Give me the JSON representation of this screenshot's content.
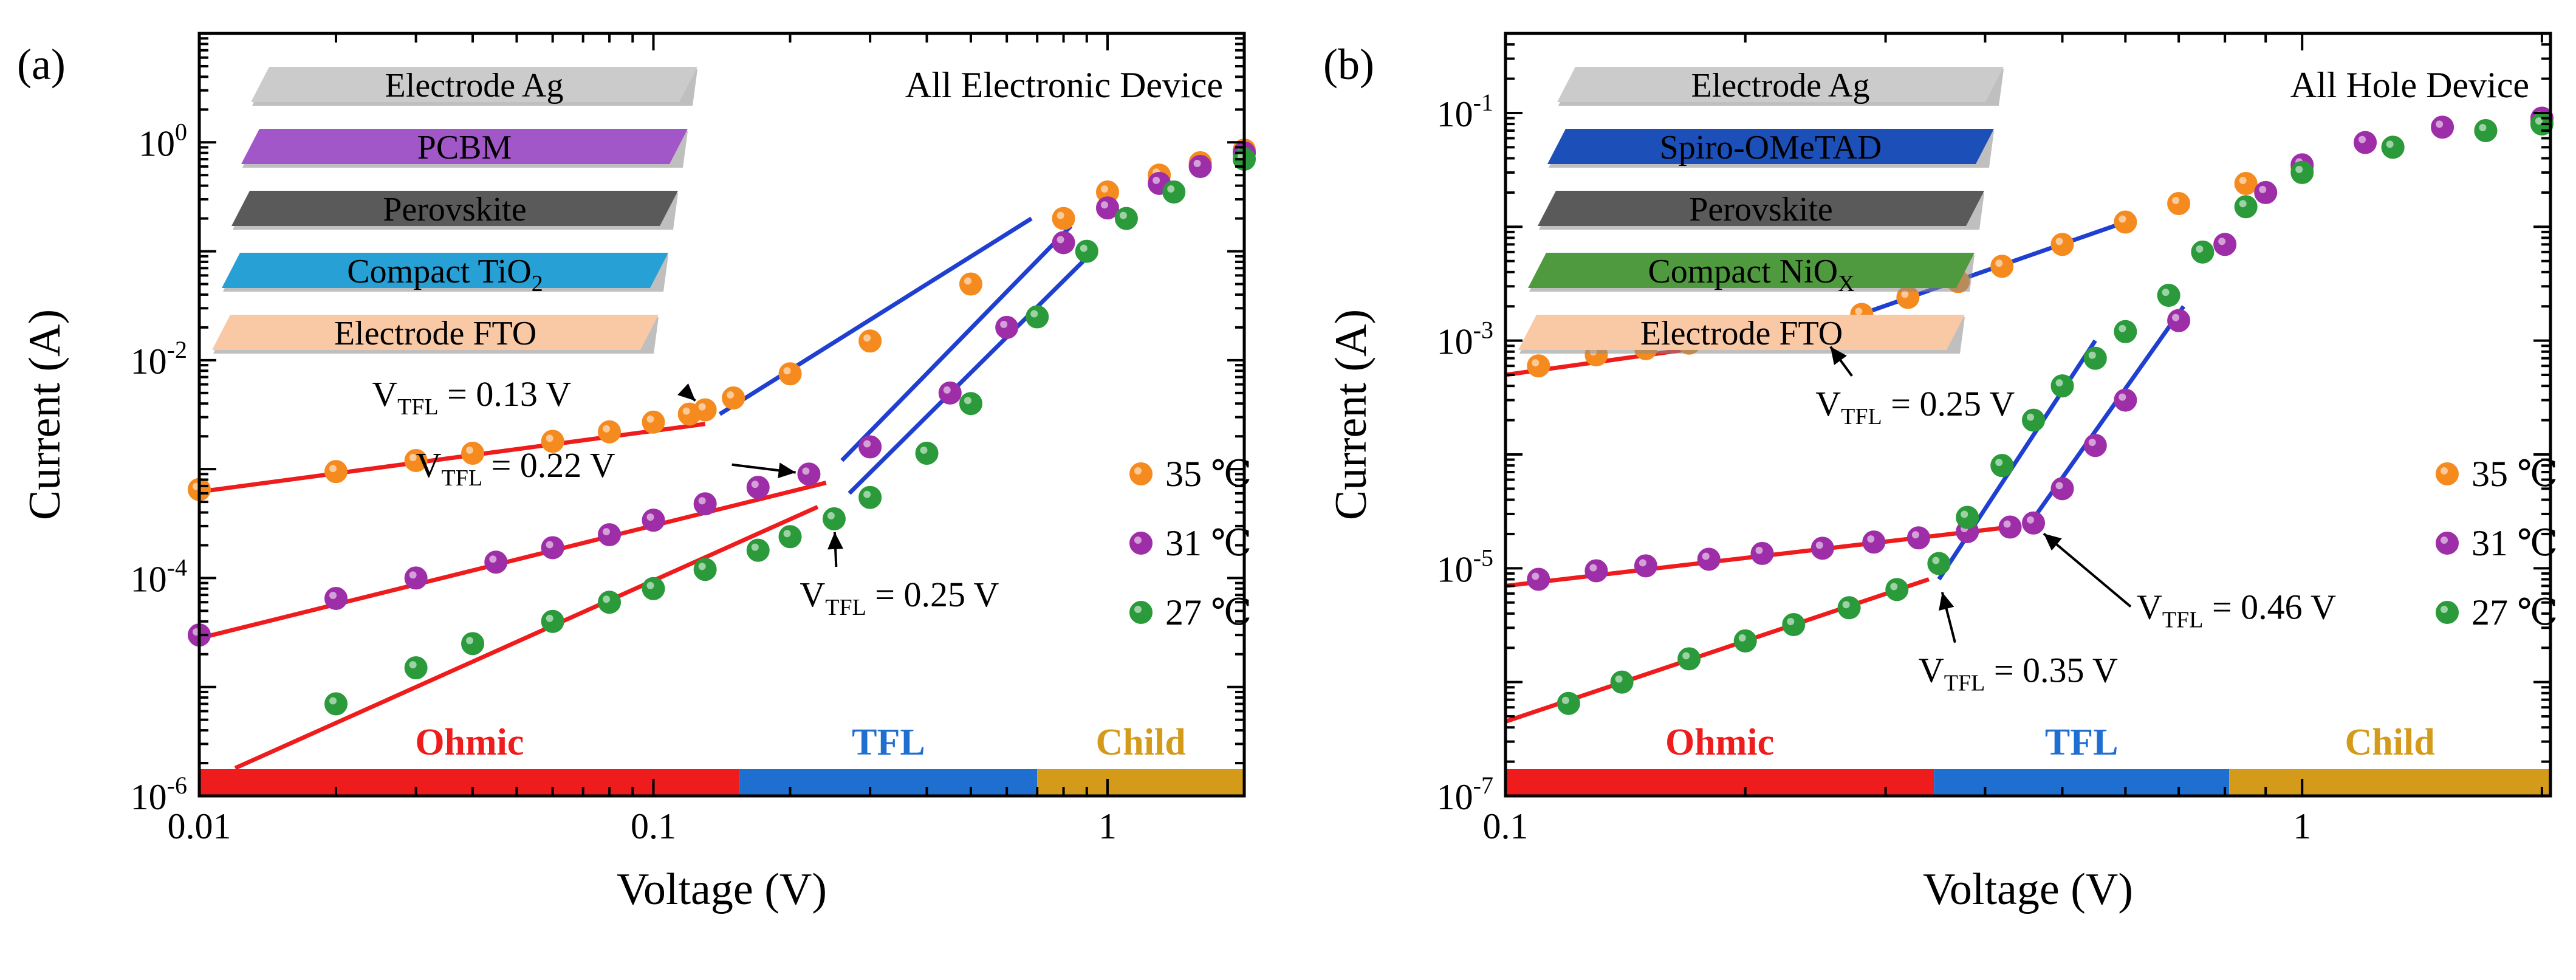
{
  "chart_data": [
    {
      "panel_label": "(a)",
      "type": "scatter",
      "x_scale": "log",
      "y_scale": "log",
      "xlim": [
        0.01,
        2
      ],
      "ylim": [
        1e-06,
        10
      ],
      "xlabel": "Voltage (V)",
      "ylabel": "Current (A)",
      "x_ticks": [
        {
          "value": 0.01,
          "label": "0.01"
        },
        {
          "value": 0.1,
          "label": "0.1"
        },
        {
          "value": 1,
          "label": "1"
        }
      ],
      "y_ticks": [
        {
          "value": 1e-06,
          "base": "10",
          "exp": "-6"
        },
        {
          "value": 0.0001,
          "base": "10",
          "exp": "-4"
        },
        {
          "value": 0.01,
          "base": "10",
          "exp": "-2"
        },
        {
          "value": 1,
          "base": "10",
          "exp": "0"
        }
      ],
      "device_title": "All Electronic Device",
      "layers": [
        {
          "text": "Electrode Ag",
          "sub": "",
          "color": "#cbcbcb"
        },
        {
          "text": "PCBM",
          "sub": "",
          "color": "#a257c8"
        },
        {
          "text": "Perovskite",
          "sub": "",
          "color": "#5a5a5a"
        },
        {
          "text": "Compact TiO",
          "sub": "2",
          "color": "#27a0d6"
        },
        {
          "text": "Electrode FTO",
          "sub": "",
          "color": "#f9c9a6"
        }
      ],
      "regions": [
        {
          "name": "Ohmic",
          "from": 0.01,
          "to": 0.155,
          "color": "#ee1c1c"
        },
        {
          "name": "TFL",
          "from": 0.155,
          "to": 0.7,
          "color": "#1f6fd1"
        },
        {
          "name": "Child",
          "from": 0.7,
          "to": 2,
          "color": "#d49a1a"
        }
      ],
      "series": [
        {
          "name": "35 ℃",
          "color": "#f58a1f",
          "x": [
            0.01,
            0.02,
            0.03,
            0.04,
            0.06,
            0.08,
            0.1,
            0.12,
            0.13,
            0.15,
            0.2,
            0.3,
            0.5,
            0.8,
            1.0,
            1.3,
            1.6,
            2.0
          ],
          "y": [
            0.00065,
            0.00095,
            0.0012,
            0.0014,
            0.0018,
            0.0022,
            0.0027,
            0.0032,
            0.0035,
            0.0045,
            0.0075,
            0.015,
            0.05,
            0.2,
            0.35,
            0.5,
            0.65,
            0.85
          ]
        },
        {
          "name": "31 ℃",
          "color": "#9d2ea8",
          "x": [
            0.01,
            0.02,
            0.03,
            0.045,
            0.06,
            0.08,
            0.1,
            0.13,
            0.17,
            0.22,
            0.3,
            0.45,
            0.6,
            0.8,
            1.0,
            1.3,
            1.6,
            2.0
          ],
          "y": [
            3e-05,
            6.5e-05,
            0.0001,
            0.00014,
            0.00019,
            0.00025,
            0.00034,
            0.00048,
            0.00068,
            0.0009,
            0.0016,
            0.005,
            0.02,
            0.12,
            0.25,
            0.42,
            0.6,
            0.8
          ]
        },
        {
          "name": "27 ℃",
          "color": "#2a9a3a",
          "x": [
            0.02,
            0.03,
            0.04,
            0.06,
            0.08,
            0.1,
            0.13,
            0.17,
            0.2,
            0.25,
            0.3,
            0.4,
            0.5,
            0.7,
            0.9,
            1.1,
            1.4,
            2.0
          ],
          "y": [
            7e-06,
            1.5e-05,
            2.5e-05,
            4e-05,
            6e-05,
            8e-05,
            0.00012,
            0.00018,
            0.00024,
            0.00035,
            0.00055,
            0.0014,
            0.004,
            0.025,
            0.1,
            0.2,
            0.35,
            0.7
          ]
        }
      ],
      "fit_lines": [
        {
          "color": "#ee1c1c",
          "x": [
            0.01,
            0.13
          ],
          "y": [
            0.00062,
            0.0026
          ]
        },
        {
          "color": "#ee1c1c",
          "x": [
            0.01,
            0.24
          ],
          "y": [
            2.8e-05,
            0.00075
          ]
        },
        {
          "color": "#ee1c1c",
          "x": [
            0.012,
            0.23
          ],
          "y": [
            1.8e-06,
            0.00045
          ]
        },
        {
          "color": "#1f3fd1",
          "x": [
            0.14,
            0.68
          ],
          "y": [
            0.0032,
            0.2
          ]
        },
        {
          "color": "#1f3fd1",
          "x": [
            0.26,
            0.83
          ],
          "y": [
            0.0012,
            0.17
          ]
        },
        {
          "color": "#1f3fd1",
          "x": [
            0.27,
            0.93
          ],
          "y": [
            0.0006,
            0.1
          ]
        }
      ],
      "annotations": [
        {
          "text": "0.13 V",
          "marker_x": 0.13,
          "marker_y": 0.0035,
          "label_x": 0.024,
          "label_y": 0.0038
        },
        {
          "text": "0.22 V",
          "marker_x": 0.22,
          "marker_y": 0.0009,
          "label_x": 0.03,
          "label_y": 0.00085
        },
        {
          "text": "0.25 V",
          "marker_x": 0.25,
          "marker_y": 0.00035,
          "label_x": 0.21,
          "label_y": 5.5e-05
        }
      ]
    },
    {
      "panel_label": "(b)",
      "type": "scatter",
      "x_scale": "log",
      "y_scale": "log",
      "xlim": [
        0.1,
        2.05
      ],
      "ylim": [
        1e-07,
        0.5
      ],
      "xlabel": "Voltage (V)",
      "ylabel": "Current (A)",
      "x_ticks": [
        {
          "value": 0.1,
          "label": "0.1"
        },
        {
          "value": 1,
          "label": "1"
        }
      ],
      "y_ticks": [
        {
          "value": 1e-07,
          "base": "10",
          "exp": "-7"
        },
        {
          "value": 1e-05,
          "base": "10",
          "exp": "-5"
        },
        {
          "value": 0.001,
          "base": "10",
          "exp": "-3"
        },
        {
          "value": 0.1,
          "base": "10",
          "exp": "-1"
        }
      ],
      "device_title": "All Hole Device",
      "layers": [
        {
          "text": "Electrode Ag",
          "sub": "",
          "color": "#cbcbcb"
        },
        {
          "text": "Spiro-OMeTAD",
          "sub": "",
          "color": "#1d4fb8"
        },
        {
          "text": "Perovskite",
          "sub": "",
          "color": "#5a5a5a"
        },
        {
          "text": "Compact NiO",
          "sub": "X",
          "color": "#4f9a3e"
        },
        {
          "text": "Electrode FTO",
          "sub": "",
          "color": "#f9c9a6"
        }
      ],
      "regions": [
        {
          "name": "Ohmic",
          "from": 0.1,
          "to": 0.345,
          "color": "#ee1c1c"
        },
        {
          "name": "TFL",
          "from": 0.345,
          "to": 0.81,
          "color": "#1f6fd1"
        },
        {
          "name": "Child",
          "from": 0.81,
          "to": 2.05,
          "color": "#d49a1a"
        }
      ],
      "series": [
        {
          "name": "35 ℃",
          "color": "#f58a1f",
          "x": [
            0.11,
            0.13,
            0.15,
            0.17,
            0.2,
            0.23,
            0.25,
            0.28,
            0.32,
            0.37,
            0.42,
            0.5,
            0.6,
            0.7,
            0.85,
            1.0,
            1.3,
            1.7,
            2.0
          ],
          "y": [
            0.0006,
            0.00075,
            0.00085,
            0.00095,
            0.0011,
            0.00125,
            0.0013,
            0.0017,
            0.0024,
            0.0033,
            0.0045,
            0.007,
            0.011,
            0.016,
            0.024,
            0.033,
            0.05,
            0.07,
            0.085
          ]
        },
        {
          "name": "31 ℃",
          "color": "#9d2ea8",
          "x": [
            0.11,
            0.13,
            0.15,
            0.18,
            0.21,
            0.25,
            0.29,
            0.33,
            0.38,
            0.43,
            0.46,
            0.5,
            0.55,
            0.6,
            0.7,
            0.8,
            0.9,
            1.0,
            1.2,
            1.5,
            2.0
          ],
          "y": [
            8e-06,
            9.5e-06,
            1.05e-05,
            1.2e-05,
            1.35e-05,
            1.5e-05,
            1.7e-05,
            1.85e-05,
            2.1e-05,
            2.3e-05,
            2.5e-05,
            5e-05,
            0.00012,
            0.0003,
            0.0015,
            0.007,
            0.02,
            0.035,
            0.055,
            0.075,
            0.09
          ]
        },
        {
          "name": "27 ℃",
          "color": "#2a9a3a",
          "x": [
            0.12,
            0.14,
            0.17,
            0.2,
            0.23,
            0.27,
            0.31,
            0.35,
            0.38,
            0.42,
            0.46,
            0.5,
            0.55,
            0.6,
            0.68,
            0.75,
            0.85,
            1.0,
            1.3,
            1.7,
            2.0
          ],
          "y": [
            6.5e-07,
            1e-06,
            1.6e-06,
            2.3e-06,
            3.2e-06,
            4.5e-06,
            6.5e-06,
            1.1e-05,
            2.8e-05,
            8e-05,
            0.0002,
            0.0004,
            0.0007,
            0.0012,
            0.0025,
            0.006,
            0.015,
            0.03,
            0.05,
            0.07,
            0.08
          ]
        }
      ],
      "fit_lines": [
        {
          "color": "#ee1c1c",
          "x": [
            0.1,
            0.255
          ],
          "y": [
            0.0005,
            0.00125
          ]
        },
        {
          "color": "#ee1c1c",
          "x": [
            0.1,
            0.43
          ],
          "y": [
            7e-06,
            2.3e-05
          ]
        },
        {
          "color": "#ee1c1c",
          "x": [
            0.1,
            0.34
          ],
          "y": [
            4.5e-07,
            8e-06
          ]
        },
        {
          "color": "#1f3fd1",
          "x": [
            0.25,
            0.6
          ],
          "y": [
            0.0013,
            0.011
          ]
        },
        {
          "color": "#1f3fd1",
          "x": [
            0.35,
            0.55
          ],
          "y": [
            8e-06,
            0.001
          ]
        },
        {
          "color": "#1f3fd1",
          "x": [
            0.45,
            0.71
          ],
          "y": [
            2.2e-05,
            0.002
          ]
        }
      ],
      "annotations": [
        {
          "text": "0.25 V",
          "marker_x": 0.25,
          "marker_y": 0.0011,
          "label_x": 0.245,
          "label_y": 0.00022
        },
        {
          "text": "0.46 V",
          "marker_x": 0.46,
          "marker_y": 2.4e-05,
          "label_x": 0.62,
          "label_y": 3.6e-06
        },
        {
          "text": "0.35 V",
          "marker_x": 0.35,
          "marker_y": 8e-06,
          "label_x": 0.33,
          "label_y": 1e-06
        }
      ]
    }
  ],
  "annotation_prefix": "V",
  "annotation_sub": "TFL",
  "annotation_mid": " = "
}
